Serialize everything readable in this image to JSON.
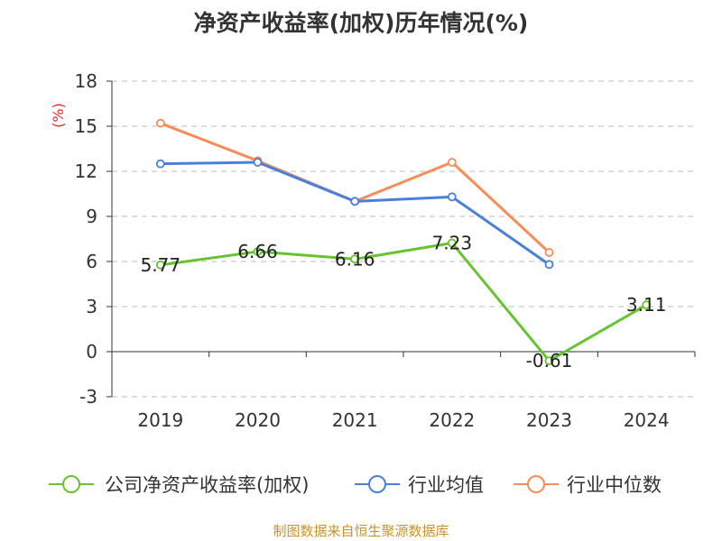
{
  "chart_data": {
    "type": "line",
    "title": "净资产收益率(加权)历年情况(%)",
    "ylabel": "(%)",
    "xlabel": "",
    "categories": [
      "2019",
      "2020",
      "2021",
      "2022",
      "2023",
      "2024"
    ],
    "ylim": [
      -3,
      18
    ],
    "yticks": [
      -3,
      0,
      3,
      6,
      9,
      12,
      15,
      18
    ],
    "grid": true,
    "legend_position": "bottom",
    "series": [
      {
        "name": "公司净资产收益率(加权)",
        "color": "#66c431",
        "values": [
          5.77,
          6.66,
          6.16,
          7.23,
          -0.61,
          3.11
        ],
        "labels": [
          "5.77",
          "6.66",
          "6.16",
          "7.23",
          "-0.61",
          "3.11"
        ]
      },
      {
        "name": "行业均值",
        "color": "#4a7fdc",
        "values": [
          12.5,
          12.6,
          10.0,
          10.3,
          5.8,
          null
        ]
      },
      {
        "name": "行业中位数",
        "color": "#f98c58",
        "values": [
          15.2,
          12.7,
          10.0,
          12.6,
          6.6,
          null
        ]
      }
    ]
  },
  "footer": {
    "source": "制图数据来自恒生聚源数据库"
  }
}
